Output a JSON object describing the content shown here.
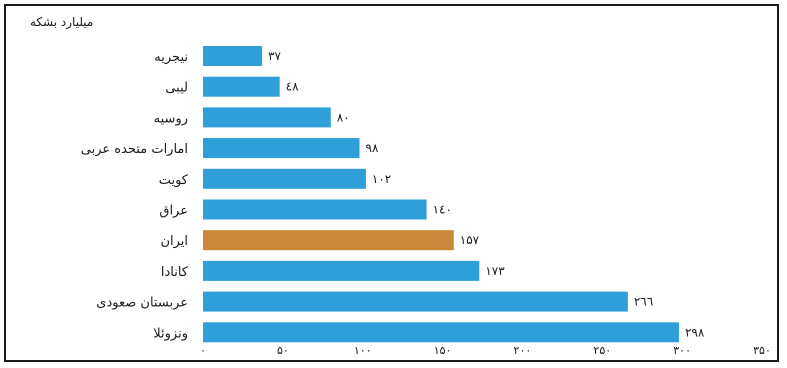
{
  "chart_data": {
    "type": "bar",
    "orientation": "horizontal",
    "unit_label": "میلیارد بشکه",
    "categories": [
      "نیجریه",
      "لیبی",
      "روسیه",
      "امارات متحده عربی",
      "کویت",
      "عراق",
      "ایران",
      "کانادا",
      "عربستان صعودی",
      "ونزوئلا"
    ],
    "values": [
      37,
      48,
      80,
      98,
      102,
      140,
      157,
      173,
      266,
      298
    ],
    "value_labels": [
      "۳۷",
      "٤٨",
      "٨٠",
      "٩٨",
      "۱۰۲",
      "۱٤۰",
      "۱۵۷",
      "۱۷۳",
      "۲٦٦",
      "۲۹۸"
    ],
    "xlim": [
      0,
      350
    ],
    "xticks": [
      0,
      50,
      100,
      150,
      200,
      250,
      300,
      350
    ],
    "xtick_labels": [
      "۰",
      "۵۰",
      "۱۰۰",
      "۱۵۰",
      "۲۰۰",
      "۲۵۰",
      "۳۰۰",
      "۳۵۰"
    ],
    "colors": {
      "default": "#2e9fd9",
      "highlight": "#c8873a"
    },
    "highlight_category": "ایران",
    "grid": false,
    "legend": "none"
  }
}
